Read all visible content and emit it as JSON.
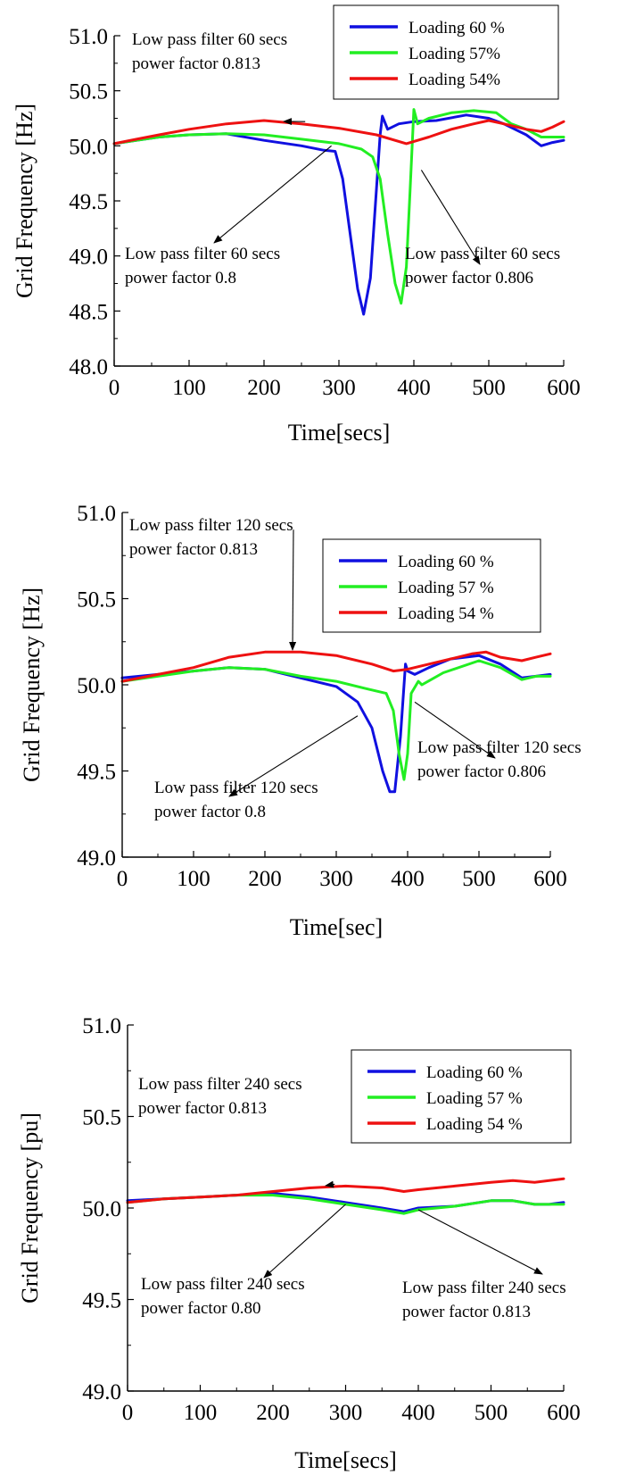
{
  "chart_data": [
    {
      "type": "line",
      "xlabel": "Time[secs]",
      "ylabel": "Grid Frequency [Hz]",
      "xlim": [
        0,
        600
      ],
      "ylim": [
        48.0,
        51.0
      ],
      "xticks": [
        0,
        100,
        200,
        300,
        400,
        500,
        600
      ],
      "yticks": [
        48.0,
        48.5,
        49.0,
        49.5,
        50.0,
        50.5,
        51.0
      ],
      "grid": false,
      "legend_position": "top-right",
      "series": [
        {
          "name": "Loading 60 %",
          "color": "#1010e0",
          "x": [
            0,
            30,
            60,
            100,
            150,
            200,
            250,
            280,
            295,
            305,
            315,
            325,
            333,
            342,
            350,
            355,
            358,
            365,
            380,
            400,
            430,
            470,
            500,
            520,
            550,
            570,
            585,
            600
          ],
          "y": [
            50.02,
            50.05,
            50.08,
            50.1,
            50.11,
            50.05,
            50.0,
            49.96,
            49.95,
            49.7,
            49.2,
            48.7,
            48.47,
            48.8,
            49.6,
            50.1,
            50.27,
            50.15,
            50.2,
            50.22,
            50.23,
            50.28,
            50.25,
            50.2,
            50.1,
            50.0,
            50.03,
            50.05
          ]
        },
        {
          "name": "Loading 57%",
          "color": "#22ee22",
          "x": [
            0,
            30,
            60,
            100,
            150,
            200,
            250,
            300,
            330,
            345,
            355,
            365,
            375,
            383,
            390,
            395,
            400,
            405,
            420,
            450,
            480,
            510,
            530,
            550,
            570,
            585,
            600
          ],
          "y": [
            50.02,
            50.05,
            50.08,
            50.1,
            50.11,
            50.1,
            50.06,
            50.02,
            49.97,
            49.9,
            49.7,
            49.2,
            48.75,
            48.57,
            48.9,
            49.6,
            50.33,
            50.2,
            50.25,
            50.3,
            50.32,
            50.3,
            50.2,
            50.15,
            50.08,
            50.08,
            50.08
          ]
        },
        {
          "name": "Loading 54%",
          "color": "#ee1111",
          "x": [
            0,
            30,
            60,
            100,
            150,
            200,
            250,
            300,
            350,
            390,
            420,
            450,
            480,
            500,
            520,
            550,
            570,
            585,
            600
          ],
          "y": [
            50.02,
            50.06,
            50.1,
            50.15,
            50.2,
            50.23,
            50.2,
            50.16,
            50.1,
            50.02,
            50.08,
            50.15,
            50.2,
            50.23,
            50.2,
            50.15,
            50.13,
            50.17,
            50.22
          ]
        }
      ],
      "annotations": [
        {
          "lines": [
            "Low pass filter 60 secs",
            "power factor 0.813"
          ],
          "target": [
            255,
            50.22
          ]
        },
        {
          "lines": [
            "Low pass filter 60 secs",
            "power factor 0.8"
          ],
          "target": [
            290,
            50.0
          ]
        },
        {
          "lines": [
            "Low pass filter 60 secs",
            "power factor 0.806"
          ],
          "target": [
            410,
            49.78
          ]
        }
      ]
    },
    {
      "type": "line",
      "xlabel": "Time[sec]",
      "ylabel": "Grid Frequency [Hz]",
      "xlim": [
        0,
        600
      ],
      "ylim": [
        49.0,
        51.0
      ],
      "xticks": [
        0,
        100,
        200,
        300,
        400,
        500,
        600
      ],
      "yticks": [
        49.0,
        49.5,
        50.0,
        50.5,
        51.0
      ],
      "grid": false,
      "legend_position": "top-right",
      "series": [
        {
          "name": "Loading 60 %",
          "color": "#1010e0",
          "x": [
            0,
            50,
            100,
            150,
            200,
            250,
            300,
            330,
            350,
            365,
            375,
            382,
            390,
            397,
            400,
            410,
            430,
            460,
            500,
            530,
            560,
            580,
            600
          ],
          "y": [
            50.04,
            50.06,
            50.08,
            50.1,
            50.09,
            50.04,
            49.99,
            49.9,
            49.75,
            49.5,
            49.38,
            49.38,
            49.7,
            50.12,
            50.08,
            50.06,
            50.1,
            50.15,
            50.17,
            50.12,
            50.04,
            50.05,
            50.06
          ]
        },
        {
          "name": "Loading 57 %",
          "color": "#22ee22",
          "x": [
            0,
            50,
            100,
            150,
            200,
            250,
            300,
            340,
            370,
            380,
            388,
            395,
            400,
            405,
            415,
            420,
            450,
            500,
            530,
            560,
            580,
            600
          ],
          "y": [
            50.02,
            50.05,
            50.08,
            50.1,
            50.09,
            50.05,
            50.02,
            49.98,
            49.95,
            49.85,
            49.6,
            49.45,
            49.6,
            49.95,
            50.02,
            50.0,
            50.07,
            50.14,
            50.1,
            50.03,
            50.05,
            50.05
          ]
        },
        {
          "name": "Loading 54 %",
          "color": "#ee1111",
          "x": [
            0,
            50,
            100,
            150,
            200,
            250,
            300,
            350,
            380,
            400,
            430,
            460,
            490,
            510,
            530,
            560,
            580,
            600
          ],
          "y": [
            50.02,
            50.06,
            50.1,
            50.16,
            50.19,
            50.19,
            50.17,
            50.12,
            50.08,
            50.09,
            50.12,
            50.15,
            50.18,
            50.19,
            50.16,
            50.14,
            50.16,
            50.18
          ]
        }
      ],
      "annotations": [
        {
          "lines": [
            "Low pass filter 120 secs",
            "power factor 0.813"
          ],
          "target": [
            240,
            50.9
          ]
        },
        {
          "lines": [
            "Low pass filter 120 secs",
            "power factor 0.8"
          ],
          "target": [
            330,
            49.82
          ]
        },
        {
          "lines": [
            "Low pass filter 120 secs",
            "power factor 0.806"
          ],
          "target": [
            410,
            49.9
          ]
        }
      ]
    },
    {
      "type": "line",
      "xlabel": "Time[secs]",
      "ylabel": "Grid Frequency [pu]",
      "xlim": [
        0,
        600
      ],
      "ylim": [
        49.0,
        51.0
      ],
      "xticks": [
        0,
        100,
        200,
        300,
        400,
        500,
        600
      ],
      "yticks": [
        49.0,
        49.5,
        50.0,
        50.5,
        51.0
      ],
      "grid": false,
      "legend_position": "top-right",
      "series": [
        {
          "name": "Loading 60 %",
          "color": "#1010e0",
          "x": [
            0,
            50,
            100,
            150,
            200,
            250,
            300,
            350,
            380,
            400,
            450,
            500,
            530,
            560,
            580,
            600
          ],
          "y": [
            50.04,
            50.05,
            50.06,
            50.07,
            50.08,
            50.06,
            50.03,
            50.0,
            49.98,
            50.0,
            50.01,
            50.04,
            50.04,
            50.02,
            50.02,
            50.03
          ]
        },
        {
          "name": "Loading 57 %",
          "color": "#22ee22",
          "x": [
            0,
            50,
            100,
            150,
            200,
            250,
            300,
            350,
            380,
            400,
            450,
            500,
            530,
            560,
            580,
            600
          ],
          "y": [
            50.03,
            50.05,
            50.06,
            50.07,
            50.07,
            50.05,
            50.02,
            49.99,
            49.97,
            49.99,
            50.01,
            50.04,
            50.04,
            50.02,
            50.02,
            50.02
          ]
        },
        {
          "name": "Loading 54 %",
          "color": "#ee1111",
          "x": [
            0,
            50,
            100,
            150,
            200,
            250,
            300,
            350,
            380,
            400,
            450,
            500,
            530,
            560,
            580,
            600
          ],
          "y": [
            50.03,
            50.05,
            50.06,
            50.07,
            50.09,
            50.11,
            50.12,
            50.11,
            50.09,
            50.1,
            50.12,
            50.14,
            50.15,
            50.14,
            50.15,
            50.16
          ]
        }
      ],
      "annotations": [
        {
          "lines": [
            "Low pass filter 240 secs",
            "power factor 0.813"
          ],
          "target": [
            285,
            50.13
          ]
        },
        {
          "lines": [
            "Low pass filter 240 secs",
            "power factor 0.80"
          ],
          "target": [
            300,
            50.02
          ]
        },
        {
          "lines": [
            "Low pass filter 240 secs",
            "power factor 0.813"
          ],
          "target": [
            400,
            49.99
          ]
        }
      ]
    }
  ]
}
